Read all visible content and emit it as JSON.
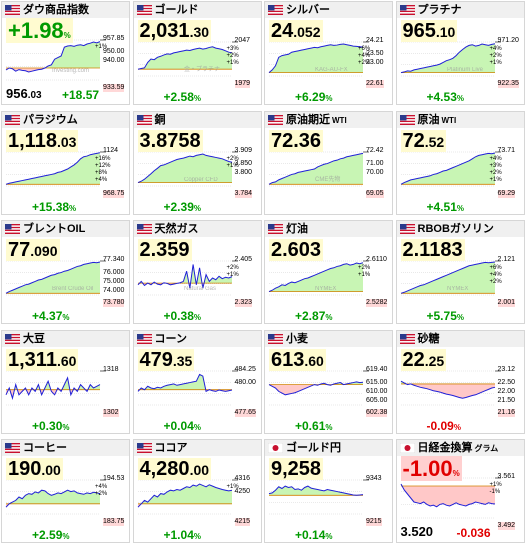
{
  "tiles": [
    {
      "name": "ダウ商品指数",
      "sub": "",
      "flag": "us",
      "price_main": "956",
      "price_dec": ".03",
      "layout": "bottom",
      "change_main": "+18.57",
      "change_pct": "",
      "big": "+1.98",
      "big_pct": "%",
      "dir": "pos",
      "hi": "957.85",
      "lo": "933.59",
      "side": [
        "950.00",
        "940.00"
      ],
      "pcts": [
        "+1%"
      ],
      "wm": "Investing.com",
      "series": [
        0.25,
        0.3,
        0.28,
        0.22,
        0.26,
        0.24,
        0.23,
        0.2,
        0.22,
        0.24,
        0.26,
        0.27,
        0.3,
        0.35,
        0.38,
        0.52,
        0.56,
        0.6,
        0.82,
        0.85,
        0.86,
        0.84,
        0.87,
        0.88,
        0.86,
        0.9,
        0.92,
        0.95,
        0.93,
        0.96
      ],
      "baseline": 0.3
    },
    {
      "name": "ゴールド",
      "sub": "",
      "flag": "us",
      "price_main": "2,031",
      "price_dec": ".30",
      "layout": "top",
      "change_main": "+2.58",
      "change_pct": "%",
      "dir": "pos",
      "hi": "2047",
      "lo": "1979",
      "side": [],
      "pcts": [
        "+3%",
        "+2%",
        "+1%"
      ],
      "wm": "金・プラチナ",
      "series": [
        0.2,
        0.22,
        0.24,
        0.4,
        0.5,
        0.48,
        0.55,
        0.58,
        0.62,
        0.65,
        0.64,
        0.68,
        0.7,
        0.72,
        0.74,
        0.76,
        0.75,
        0.78,
        0.8,
        0.82,
        0.79,
        0.81,
        0.84,
        0.86,
        0.82,
        0.8,
        0.78,
        0.74,
        0.7,
        0.68
      ],
      "baseline": 0.2
    },
    {
      "name": "シルバー",
      "sub": "",
      "flag": "us",
      "price_main": "24",
      "price_dec": ".052",
      "layout": "top",
      "change_main": "+6.29",
      "change_pct": "%",
      "dir": "pos",
      "hi": "24.21",
      "lo": "22.61",
      "side": [
        "23.50",
        "23.00"
      ],
      "pcts": [
        "+6%",
        "+4%",
        "+2%"
      ],
      "wm": "KAG-AU-FX",
      "series": [
        0.1,
        0.18,
        0.3,
        0.55,
        0.6,
        0.62,
        0.64,
        0.7,
        0.72,
        0.74,
        0.76,
        0.78,
        0.8,
        0.82,
        0.84,
        0.83,
        0.86,
        0.88,
        0.9,
        0.92,
        0.9,
        0.91,
        0.93,
        0.94,
        0.92,
        0.9,
        0.88,
        0.87,
        0.86,
        0.85
      ],
      "baseline": 0.1
    },
    {
      "name": "プラチナ",
      "sub": "",
      "flag": "us",
      "price_main": "965",
      "price_dec": ".10",
      "layout": "top",
      "change_main": "+4.53",
      "change_pct": "%",
      "dir": "pos",
      "hi": "971.20",
      "lo": "922.35",
      "side": [],
      "pcts": [
        "+4%",
        "+2%",
        "+1%"
      ],
      "wm": "Platinum Live",
      "series": [
        0.1,
        0.12,
        0.15,
        0.14,
        0.18,
        0.2,
        0.22,
        0.24,
        0.26,
        0.28,
        0.3,
        0.32,
        0.35,
        0.4,
        0.45,
        0.48,
        0.52,
        0.6,
        0.7,
        0.78,
        0.85,
        0.9,
        0.92,
        0.88,
        0.9,
        0.94,
        0.92,
        0.9,
        0.93,
        0.95
      ],
      "baseline": 0.1
    },
    {
      "name": "パラジウム",
      "sub": "",
      "flag": "us",
      "price_main": "1,118",
      "price_dec": ".03",
      "layout": "top",
      "change_main": "+15.38",
      "change_pct": "%",
      "dir": "pos",
      "hi": "1124",
      "lo": "968.75",
      "side": [],
      "pcts": [
        "+16%",
        "+12%",
        "+8%",
        "+4%"
      ],
      "wm": "",
      "series": [
        0.05,
        0.08,
        0.1,
        0.12,
        0.14,
        0.16,
        0.18,
        0.2,
        0.22,
        0.24,
        0.26,
        0.28,
        0.3,
        0.32,
        0.34,
        0.36,
        0.4,
        0.42,
        0.46,
        0.5,
        0.56,
        0.62,
        0.7,
        0.8,
        0.86,
        0.88,
        0.92,
        0.94,
        0.96,
        0.98
      ],
      "baseline": 0.05
    },
    {
      "name": "銅",
      "sub": "",
      "flag": "us",
      "price_main": "3.8758",
      "price_dec": "",
      "layout": "top",
      "change_main": "+2.39",
      "change_pct": "%",
      "dir": "pos",
      "hi": "3.909",
      "lo": "3.784",
      "side": [
        "3.850",
        "3.800"
      ],
      "pcts": [
        "+2%",
        "+1%"
      ],
      "wm": "Copper CFD",
      "series": [
        0.1,
        0.14,
        0.2,
        0.28,
        0.36,
        0.45,
        0.52,
        0.6,
        0.62,
        0.66,
        0.7,
        0.74,
        0.78,
        0.8,
        0.82,
        0.85,
        0.88,
        0.86,
        0.9,
        0.92,
        0.94,
        0.9,
        0.88,
        0.86,
        0.84,
        0.82,
        0.8,
        0.76,
        0.72,
        0.7
      ],
      "baseline": 0.1
    },
    {
      "name": "原油期近",
      "sub": "WTI",
      "flag": "us",
      "price_main": "72.36",
      "price_dec": "",
      "layout": "top",
      "change_main": "",
      "change_pct": "",
      "dir": "pos",
      "hi": "72.42",
      "lo": "69.05",
      "side": [
        "71.00",
        "70.00"
      ],
      "pcts": [],
      "wm": "CME先物",
      "series": [
        0.05,
        0.1,
        0.12,
        0.18,
        0.22,
        0.26,
        0.3,
        0.34,
        0.36,
        0.4,
        0.42,
        0.44,
        0.46,
        0.48,
        0.5,
        0.56,
        0.6,
        0.64,
        0.66,
        0.7,
        0.74,
        0.76,
        0.8,
        0.82,
        0.86,
        0.88,
        0.9,
        0.92,
        0.94,
        0.96
      ],
      "baseline": 0.05
    },
    {
      "name": "原油",
      "sub": "WTI",
      "flag": "us",
      "price_main": "72",
      "price_dec": ".52",
      "layout": "top",
      "change_main": "+4.51",
      "change_pct": "%",
      "dir": "pos",
      "hi": "73.71",
      "lo": "69.29",
      "side": [],
      "pcts": [
        "+4%",
        "+3%",
        "+2%",
        "+1%"
      ],
      "wm": "",
      "series": [
        0.05,
        0.1,
        0.14,
        0.18,
        0.2,
        0.22,
        0.24,
        0.26,
        0.28,
        0.3,
        0.34,
        0.36,
        0.4,
        0.44,
        0.46,
        0.5,
        0.54,
        0.58,
        0.62,
        0.66,
        0.7,
        0.74,
        0.8,
        0.86,
        0.9,
        0.92,
        0.94,
        0.96,
        0.95,
        0.97
      ],
      "baseline": 0.05
    },
    {
      "name": "ブレントOIL",
      "sub": "",
      "flag": "us",
      "price_main": "77",
      "price_dec": ".090",
      "layout": "top",
      "change_main": "+4.37",
      "change_pct": "%",
      "dir": "pos",
      "hi": "77.340",
      "lo": "73.780",
      "side": [
        "76.000",
        "75.000",
        "74.000"
      ],
      "pcts": [],
      "wm": "Brent Crude Oil",
      "series": [
        0.05,
        0.1,
        0.14,
        0.18,
        0.22,
        0.26,
        0.3,
        0.32,
        0.36,
        0.4,
        0.44,
        0.46,
        0.5,
        0.54,
        0.58,
        0.6,
        0.64,
        0.66,
        0.7,
        0.72,
        0.76,
        0.8,
        0.84,
        0.86,
        0.9,
        0.92,
        0.94,
        0.96,
        0.95,
        0.97
      ],
      "baseline": 0.05
    },
    {
      "name": "天然ガス",
      "sub": "",
      "flag": "us",
      "price_main": "2.359",
      "price_dec": "",
      "layout": "top",
      "change_main": "+0.38",
      "change_pct": "%",
      "dir": "pos",
      "hi": "2.405",
      "lo": "2.323",
      "side": [],
      "pcts": [
        "+2%",
        "+1%"
      ],
      "wm": "Natural Gas",
      "series": [
        0.3,
        0.4,
        0.28,
        0.35,
        0.3,
        0.38,
        0.32,
        0.3,
        0.36,
        0.34,
        0.3,
        0.32,
        0.34,
        0.36,
        0.4,
        0.7,
        0.2,
        0.9,
        0.3,
        0.8,
        0.2,
        0.6,
        0.4,
        0.5,
        0.45,
        0.55,
        0.48,
        0.52,
        0.5,
        0.54
      ],
      "baseline": 0.35
    },
    {
      "name": "灯油",
      "sub": "",
      "flag": "us",
      "price_main": "2.603",
      "price_dec": "",
      "layout": "top",
      "change_main": "+2.87",
      "change_pct": "%",
      "dir": "pos",
      "hi": "2.6110",
      "lo": "2.5282",
      "side": [],
      "pcts": [
        "+2%",
        "+1%"
      ],
      "wm": "NYMEX",
      "series": [
        0.1,
        0.14,
        0.2,
        0.24,
        0.3,
        0.28,
        0.34,
        0.38,
        0.36,
        0.4,
        0.44,
        0.48,
        0.5,
        0.54,
        0.58,
        0.62,
        0.66,
        0.7,
        0.74,
        0.78,
        0.8,
        0.84,
        0.86,
        0.9,
        0.92,
        0.88,
        0.9,
        0.94,
        0.92,
        0.95
      ],
      "baseline": 0.1
    },
    {
      "name": "RBOBガソリン",
      "sub": "",
      "flag": "us",
      "price_main": "2.1183",
      "price_dec": "",
      "layout": "top",
      "change_main": "+5.75",
      "change_pct": "%",
      "dir": "pos",
      "hi": "2.121",
      "lo": "2.001",
      "side": [],
      "pcts": [
        "+6%",
        "+4%",
        "+2%"
      ],
      "wm": "NYMEX",
      "series": [
        0.05,
        0.08,
        0.12,
        0.16,
        0.2,
        0.24,
        0.28,
        0.3,
        0.34,
        0.38,
        0.42,
        0.46,
        0.5,
        0.54,
        0.58,
        0.62,
        0.66,
        0.7,
        0.74,
        0.78,
        0.82,
        0.86,
        0.88,
        0.9,
        0.92,
        0.94,
        0.96,
        0.95,
        0.96,
        0.97
      ],
      "baseline": 0.05
    },
    {
      "name": "大豆",
      "sub": "",
      "flag": "us",
      "price_main": "1,311",
      "price_dec": ".60",
      "layout": "top",
      "change_main": "+0.30",
      "change_pct": "%",
      "dir": "pos",
      "hi": "1318",
      "lo": "1302",
      "side": [],
      "pcts": [],
      "wm": "",
      "series": [
        0.3,
        0.5,
        0.2,
        0.6,
        0.3,
        0.4,
        0.5,
        0.3,
        0.5,
        0.4,
        0.6,
        0.3,
        0.5,
        0.7,
        0.4,
        0.3,
        0.5,
        0.4,
        0.6,
        0.8,
        0.3,
        0.5,
        0.4,
        0.6,
        0.5,
        0.4,
        0.6,
        0.5,
        0.55,
        0.6
      ],
      "baseline": 0.45
    },
    {
      "name": "コーン",
      "sub": "",
      "flag": "us",
      "price_main": "479",
      "price_dec": ".35",
      "layout": "top",
      "change_main": "+0.04",
      "change_pct": "%",
      "dir": "pos",
      "hi": "484.25",
      "lo": "477.65",
      "side": [
        "480.00"
      ],
      "pcts": [],
      "wm": "",
      "series": [
        0.4,
        0.5,
        0.45,
        0.55,
        0.5,
        0.48,
        0.52,
        0.5,
        0.55,
        0.58,
        0.6,
        0.62,
        0.58,
        0.6,
        0.62,
        0.64,
        0.66,
        0.68,
        0.7,
        0.9,
        0.85,
        0.4,
        0.45,
        0.42,
        0.4,
        0.44,
        0.42,
        0.4,
        0.42,
        0.44
      ],
      "baseline": 0.45
    },
    {
      "name": "小麦",
      "sub": "",
      "flag": "us",
      "price_main": "613",
      "price_dec": ".60",
      "layout": "top",
      "change_main": "+0.61",
      "change_pct": "%",
      "dir": "pos",
      "hi": "619.40",
      "lo": "602.38",
      "side": [
        "615.00",
        "610.00",
        "605.00"
      ],
      "pcts": [],
      "wm": "",
      "series": [
        0.6,
        0.55,
        0.5,
        0.4,
        0.35,
        0.3,
        0.32,
        0.34,
        0.36,
        0.4,
        0.44,
        0.48,
        0.52,
        0.56,
        0.6,
        0.58,
        0.62,
        0.64,
        0.6,
        0.58,
        0.62,
        0.64,
        0.66,
        0.6,
        0.62,
        0.64,
        0.66,
        0.68,
        0.66,
        0.67
      ],
      "baseline": 0.6
    },
    {
      "name": "砂糖",
      "sub": "",
      "flag": "us",
      "price_main": "22",
      "price_dec": ".25",
      "layout": "top",
      "change_main": "-0.09",
      "change_pct": "%",
      "dir": "neg",
      "hi": "23.12",
      "lo": "21.16",
      "side": [
        "22.50",
        "22.00",
        "21.50"
      ],
      "pcts": [],
      "wm": "",
      "series": [
        0.7,
        0.65,
        0.6,
        0.62,
        0.58,
        0.55,
        0.52,
        0.5,
        0.48,
        0.45,
        0.42,
        0.4,
        0.38,
        0.35,
        0.32,
        0.3,
        0.28,
        0.25,
        0.22,
        0.2,
        0.22,
        0.25,
        0.28,
        0.3,
        0.34,
        0.38,
        0.42,
        0.46,
        0.5,
        0.52
      ],
      "baseline": 0.62
    },
    {
      "name": "コーヒー",
      "sub": "",
      "flag": "us",
      "price_main": "190",
      "price_dec": ".00",
      "layout": "top",
      "change_main": "+2.59",
      "change_pct": "%",
      "dir": "pos",
      "hi": "194.53",
      "lo": "183.75",
      "side": [],
      "pcts": [
        "+4%",
        "+2%"
      ],
      "wm": "",
      "series": [
        0.2,
        0.3,
        0.35,
        0.4,
        0.5,
        0.45,
        0.55,
        0.6,
        0.58,
        0.65,
        0.62,
        0.7,
        0.68,
        0.6,
        0.55,
        0.58,
        0.62,
        0.6,
        0.65,
        0.7,
        0.66,
        0.68,
        0.62,
        0.6,
        0.58,
        0.62,
        0.6,
        0.64,
        0.62,
        0.6
      ],
      "baseline": 0.3
    },
    {
      "name": "ココア",
      "sub": "",
      "flag": "us",
      "price_main": "4,280",
      "price_dec": ".00",
      "layout": "top",
      "change_main": "+1.04",
      "change_pct": "%",
      "dir": "pos",
      "hi": "4316",
      "lo": "4215",
      "side": [
        "4250"
      ],
      "pcts": [
        "+1%"
      ],
      "wm": "",
      "series": [
        0.2,
        0.3,
        0.4,
        0.35,
        0.45,
        0.55,
        0.5,
        0.6,
        0.58,
        0.65,
        0.7,
        0.68,
        0.72,
        0.7,
        0.75,
        0.8,
        0.78,
        0.85,
        0.82,
        0.88,
        0.84,
        0.8,
        0.86,
        0.82,
        0.78,
        0.75,
        0.72,
        0.7,
        0.68,
        0.7
      ],
      "baseline": 0.3
    },
    {
      "name": "ゴールド円",
      "sub": "",
      "flag": "jp",
      "price_main": "9,258",
      "price_dec": "",
      "layout": "top",
      "change_main": "+0.14",
      "change_pct": "%",
      "dir": "pos",
      "hi": "9343",
      "lo": "9215",
      "side": [],
      "pcts": [],
      "wm": "",
      "series": [
        0.6,
        0.62,
        0.7,
        0.8,
        0.75,
        0.82,
        0.78,
        0.8,
        0.72,
        0.74,
        0.7,
        0.78,
        0.82,
        0.76,
        0.74,
        0.72,
        0.7,
        0.68,
        0.72,
        0.7,
        0.68,
        0.66,
        0.64,
        0.62,
        0.6,
        0.58,
        0.56,
        0.55,
        0.56,
        0.57
      ],
      "baseline": 0.55
    },
    {
      "name": "日経金換算",
      "sub": "グラム",
      "flag": "jp",
      "price_main": "3.520",
      "price_dec": "",
      "layout": "bottom",
      "change_main": "-0.036",
      "change_pct": "",
      "big": "-1.00",
      "big_pct": "%",
      "dir": "neg",
      "hi": "3.561",
      "lo": "3.492",
      "side": [],
      "pcts": [
        "+1%",
        "-1%"
      ],
      "wm": "",
      "series": [
        0.85,
        0.7,
        0.6,
        0.5,
        0.4,
        0.38,
        0.36,
        0.4,
        0.34,
        0.3,
        0.32,
        0.28,
        0.34,
        0.36,
        0.32,
        0.3,
        0.34,
        0.38,
        0.34,
        0.32,
        0.3,
        0.34,
        0.36,
        0.4,
        0.38,
        0.36,
        0.34,
        0.38,
        0.36,
        0.35
      ],
      "baseline": 0.8
    }
  ],
  "colors": {
    "pos": "#009a00",
    "neg": "#e00000",
    "fill_up": "#c8f5b4",
    "fill_down": "#ffc8c8",
    "line": "#2020d8",
    "baseline": "#d08000",
    "grid": "#c8c8c8"
  }
}
